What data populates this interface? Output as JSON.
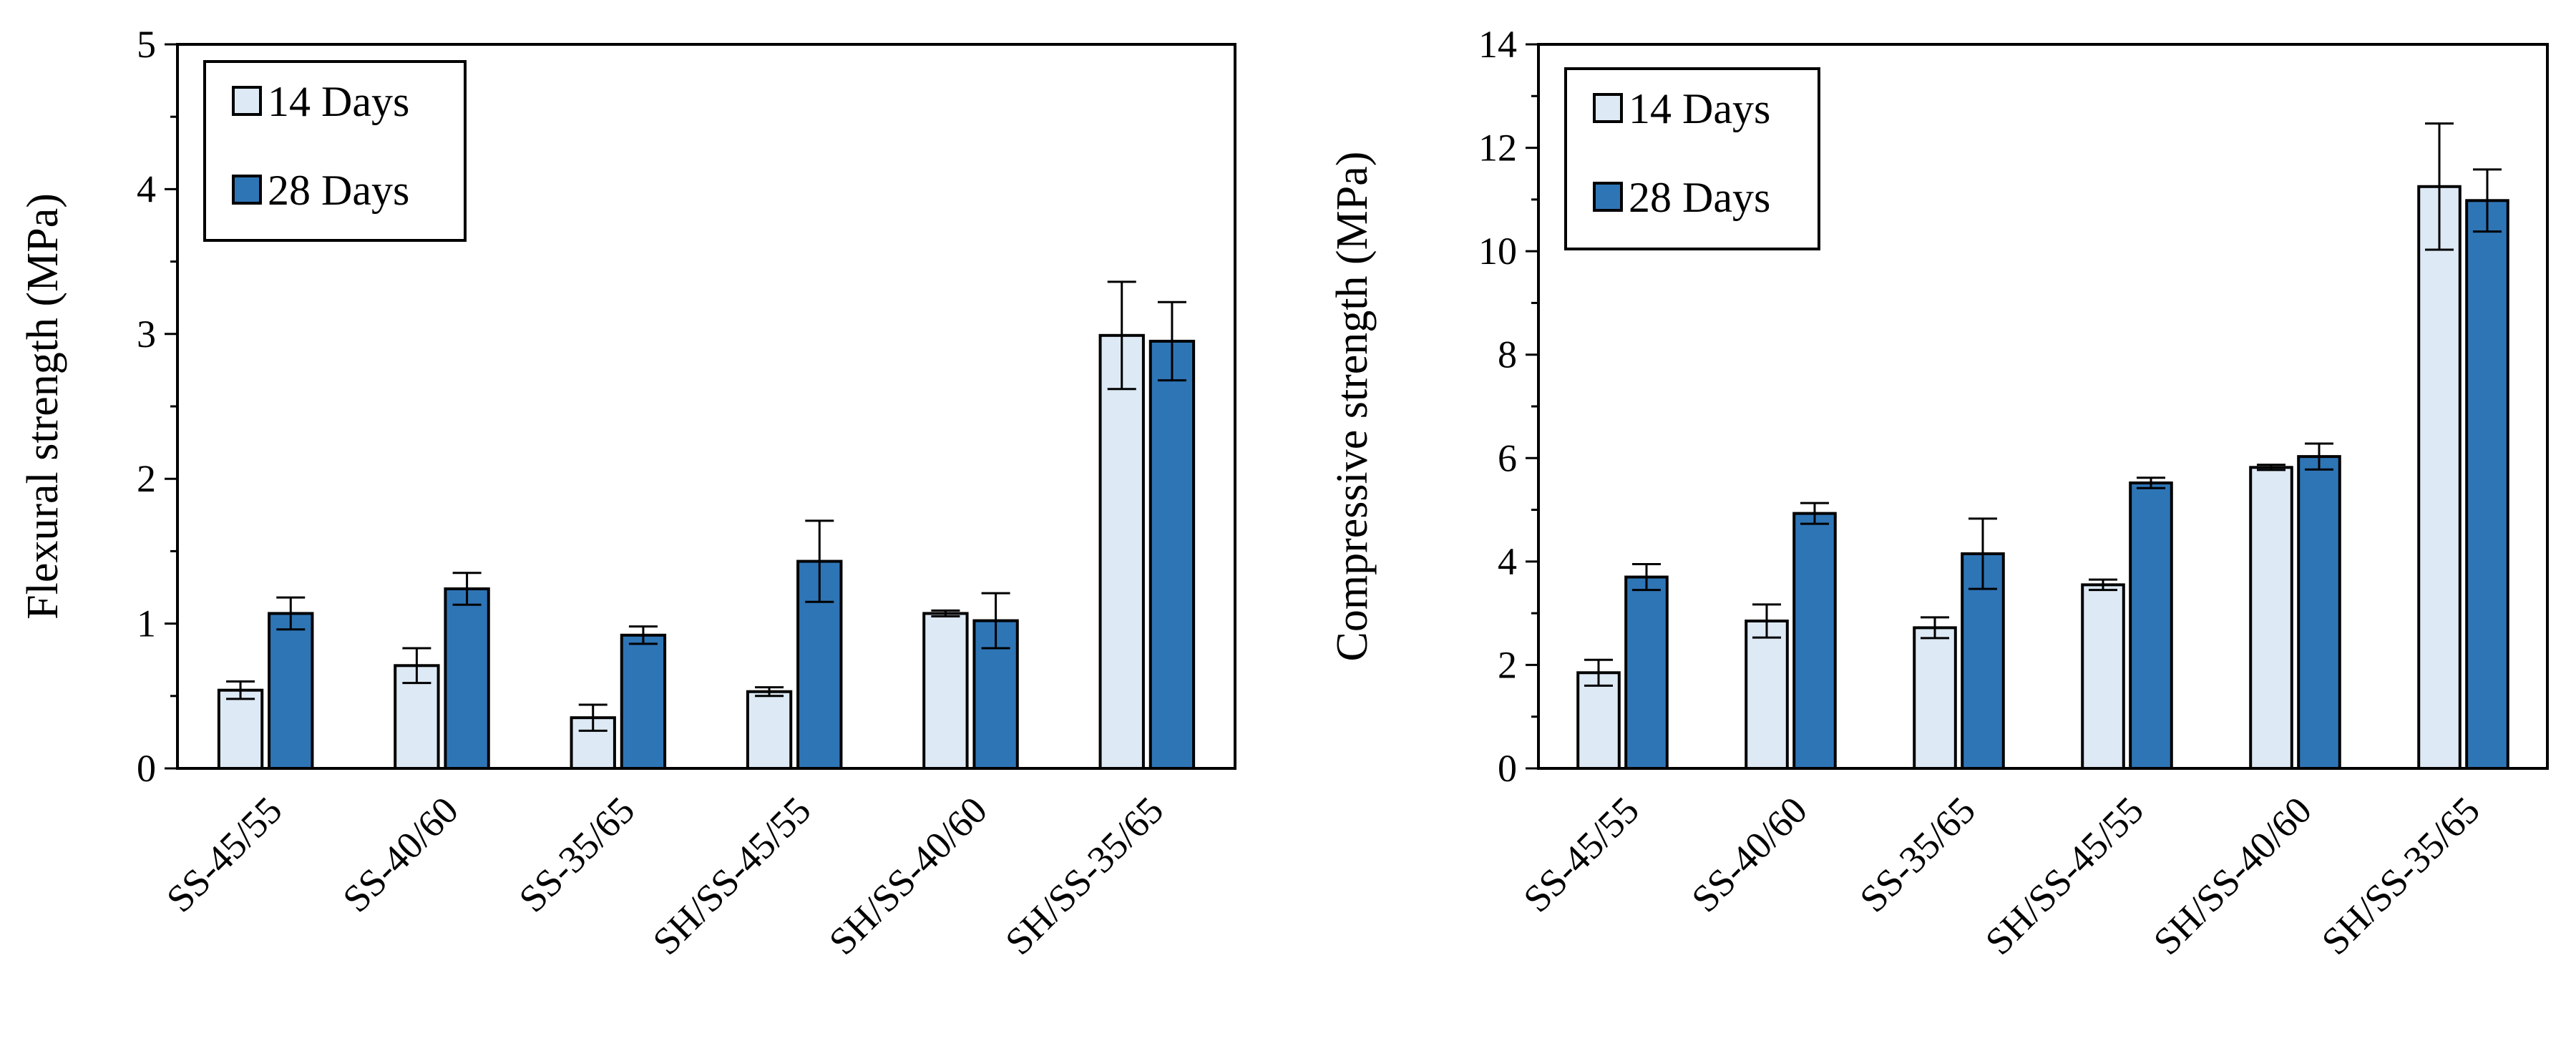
{
  "colors": {
    "d14": "#dde9f5",
    "d28": "#2e75b6",
    "outline": "#000000"
  },
  "chart_data": [
    {
      "type": "bar",
      "categories": [
        "SS-45/55",
        "SS-40/60",
        "SS-35/65",
        "SH/SS-45/55",
        "SH/SS-40/60",
        "SH/SS-35/65"
      ],
      "ylabel": "Flexural strength (MPa)",
      "xlabel": "",
      "ylim": [
        0,
        5
      ],
      "yticks": [
        0,
        1,
        2,
        3,
        4,
        5
      ],
      "grid": false,
      "legend": "top-left",
      "series": [
        {
          "name": "14 Days",
          "values": [
            0.54,
            0.71,
            0.35,
            0.53,
            1.07,
            2.99
          ],
          "errors": [
            0.06,
            0.12,
            0.09,
            0.03,
            0.02,
            0.37
          ]
        },
        {
          "name": "28 Days",
          "values": [
            1.07,
            1.24,
            0.92,
            1.43,
            1.02,
            2.95
          ],
          "errors": [
            0.11,
            0.11,
            0.06,
            0.28,
            0.19,
            0.27
          ]
        }
      ]
    },
    {
      "type": "bar",
      "categories": [
        "SS-45/55",
        "SS-40/60",
        "SS-35/65",
        "SH/SS-45/55",
        "SH/SS-40/60",
        "SH/SS-35/65"
      ],
      "ylabel": "Compressive strength (MPa)",
      "xlabel": "",
      "ylim": [
        0,
        14
      ],
      "yticks": [
        0,
        2,
        4,
        6,
        8,
        10,
        12,
        14
      ],
      "grid": false,
      "legend": "top-left",
      "series": [
        {
          "name": "14 Days",
          "values": [
            1.85,
            2.85,
            2.72,
            3.55,
            5.82,
            11.25
          ],
          "errors": [
            0.25,
            0.32,
            0.2,
            0.1,
            0.05,
            1.22
          ]
        },
        {
          "name": "28 Days",
          "values": [
            3.7,
            4.93,
            4.15,
            5.52,
            6.03,
            10.98
          ],
          "errors": [
            0.25,
            0.2,
            0.68,
            0.1,
            0.25,
            0.6
          ]
        }
      ]
    }
  ]
}
